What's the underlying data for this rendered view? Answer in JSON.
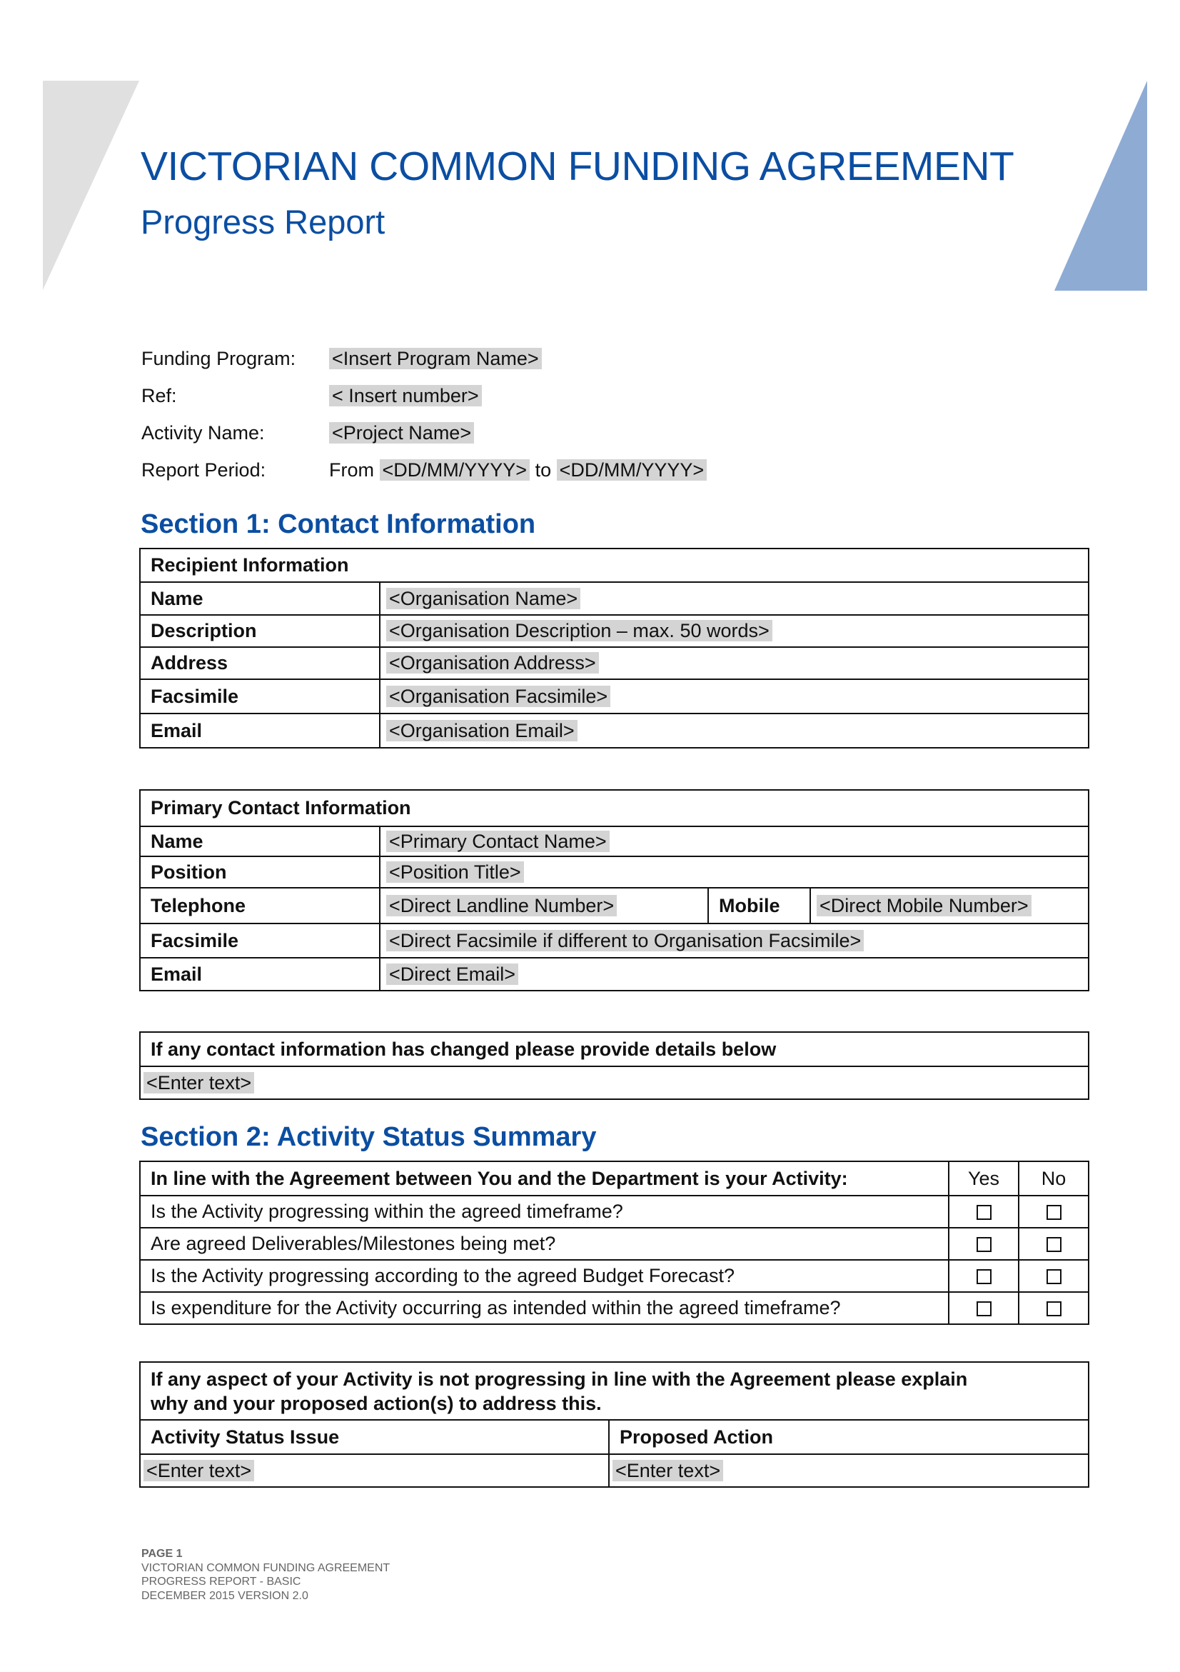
{
  "header": {
    "title": "VICTORIAN COMMON FUNDING AGREEMENT",
    "subtitle": "Progress Report",
    "colors": {
      "title": "#0b4ea2",
      "left_shape": "#e0e0e0",
      "right_shape": "#8eabd4"
    }
  },
  "fields": [
    {
      "label": "Funding Program:",
      "value": "<Insert Program Name>"
    },
    {
      "label": "Ref:",
      "value": "< Insert number>"
    },
    {
      "label": "Activity Name:",
      "value": "<Project Name>"
    },
    {
      "label": "Report Period:",
      "prefix": "From",
      "value": "<DD/MM/YYYY>",
      "mid": "to",
      "value2": "<DD/MM/YYYY>"
    }
  ],
  "section1": {
    "heading": "Section 1: Contact Information",
    "recipient": {
      "header": "Recipient Information",
      "rows": [
        {
          "label": "Name",
          "value": "<Organisation Name>"
        },
        {
          "label": "Description",
          "value": "<Organisation Description – max. 50 words>"
        },
        {
          "label": "Address",
          "value": "<Organisation Address>"
        },
        {
          "label": "Facsimile",
          "value": "<Organisation Facsimile>"
        },
        {
          "label": "Email",
          "value": "<Organisation Email>"
        }
      ]
    },
    "primary": {
      "header": "Primary Contact Information",
      "rows": [
        {
          "label": "Name",
          "value": "<Primary Contact Name>"
        },
        {
          "label": "Position",
          "value": "<Position Title>"
        },
        {
          "label": "Telephone",
          "value": "<Direct Landline Number>",
          "label2": "Mobile",
          "value2": "<Direct Mobile Number>"
        },
        {
          "label": "Facsimile",
          "value": "<Direct Facsimile if different to Organisation Facsimile>"
        },
        {
          "label": "Email",
          "value": "<Direct Email>"
        }
      ]
    },
    "changes": {
      "header": "If any contact information has changed please provide details below",
      "value": "<Enter text>"
    }
  },
  "section2": {
    "heading": "Section 2: Activity Status Summary",
    "status": {
      "header": "In line with the Agreement between You and the Department is your Activity:",
      "yes": "Yes",
      "no": "No",
      "rows": [
        {
          "question": "Is the Activity progressing within the agreed timeframe?",
          "yes": false,
          "no": false
        },
        {
          "question": "Are agreed Deliverables/Milestones being met?",
          "yes": false,
          "no": false
        },
        {
          "question": "Is the Activity progressing according to the agreed Budget Forecast?",
          "yes": false,
          "no": false
        },
        {
          "question": "Is expenditure for the Activity occurring as intended within the agreed timeframe?",
          "yes": false,
          "no": false
        }
      ]
    },
    "explain": {
      "header_line1": "If any aspect of your Activity is not progressing in line with the Agreement please explain",
      "header_line2": "why and your proposed action(s) to address this.",
      "col1": "Activity Status Issue",
      "col2": "Proposed Action",
      "value1": "<Enter text>",
      "value2": "<Enter text>"
    }
  },
  "footer": {
    "page": "PAGE 1",
    "line1": "VICTORIAN COMMON FUNDING AGREEMENT",
    "line2": "PROGRESS REPORT - BASIC",
    "line3": "DECEMBER 2015 VERSION 2.0"
  }
}
